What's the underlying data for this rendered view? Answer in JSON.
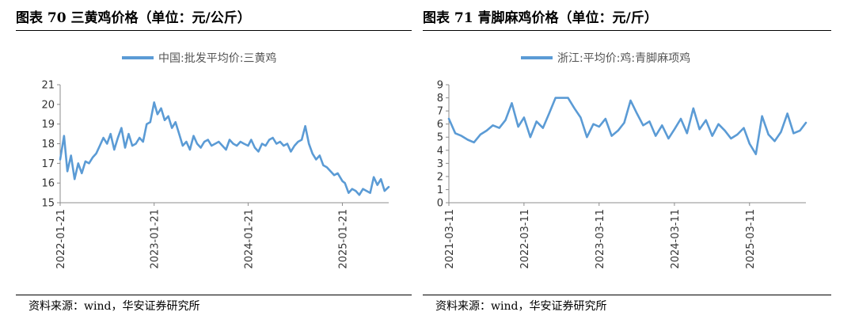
{
  "colors": {
    "series": "#5b9bd5",
    "axis": "#8c8c8c",
    "text": "#333333"
  },
  "charts": [
    {
      "title": "图表 70 三黄鸡价格（单位：元/公斤）",
      "source": "资料来源：wind，华安证券研究所"
    },
    {
      "title": "图表 71 青脚麻鸡价格（单位：元/斤）",
      "source": "资料来源：wind，华安证券研究所"
    }
  ],
  "chart_data": [
    {
      "type": "line",
      "title": "",
      "xlabel": "",
      "ylabel": "",
      "legend_position": "top",
      "grid": false,
      "ylim": [
        15,
        21
      ],
      "yticks": [
        15,
        16,
        17,
        18,
        19,
        20,
        21
      ],
      "xticks": [
        "2022-01-21",
        "2023-01-21",
        "2024-01-21",
        "2025-01-21"
      ],
      "xlim": [
        "2022-01-21",
        "2025-07-20"
      ],
      "series": [
        {
          "name": "中国:批发平均价:三黄鸡",
          "x": [
            "2022-01-21",
            "2022-02-05",
            "2022-02-18",
            "2022-03-04",
            "2022-03-18",
            "2022-04-01",
            "2022-04-15",
            "2022-04-29",
            "2022-05-13",
            "2022-05-27",
            "2022-06-10",
            "2022-06-24",
            "2022-07-08",
            "2022-07-22",
            "2022-08-05",
            "2022-08-19",
            "2022-09-02",
            "2022-09-16",
            "2022-09-30",
            "2022-10-14",
            "2022-10-28",
            "2022-11-11",
            "2022-11-25",
            "2022-12-09",
            "2022-12-23",
            "2023-01-06",
            "2023-01-21",
            "2023-02-03",
            "2023-02-17",
            "2023-03-03",
            "2023-03-17",
            "2023-03-31",
            "2023-04-14",
            "2023-04-28",
            "2023-05-12",
            "2023-05-26",
            "2023-06-09",
            "2023-06-23",
            "2023-07-07",
            "2023-07-21",
            "2023-08-04",
            "2023-08-18",
            "2023-09-01",
            "2023-09-15",
            "2023-09-29",
            "2023-10-13",
            "2023-10-27",
            "2023-11-10",
            "2023-11-24",
            "2023-12-08",
            "2023-12-22",
            "2024-01-05",
            "2024-01-21",
            "2024-02-02",
            "2024-02-16",
            "2024-03-01",
            "2024-03-15",
            "2024-03-29",
            "2024-04-12",
            "2024-04-26",
            "2024-05-10",
            "2024-05-24",
            "2024-06-07",
            "2024-06-21",
            "2024-07-05",
            "2024-07-19",
            "2024-08-02",
            "2024-08-16",
            "2024-08-30",
            "2024-09-13",
            "2024-09-27",
            "2024-10-11",
            "2024-10-25",
            "2024-11-08",
            "2024-11-22",
            "2024-12-06",
            "2024-12-20",
            "2025-01-03",
            "2025-01-21",
            "2025-01-31",
            "2025-02-14",
            "2025-02-28",
            "2025-03-14",
            "2025-03-28",
            "2025-04-11",
            "2025-04-25",
            "2025-05-09",
            "2025-05-23",
            "2025-06-06",
            "2025-06-20",
            "2025-07-04",
            "2025-07-20"
          ],
          "values": [
            17.2,
            18.4,
            16.6,
            17.4,
            16.2,
            17.0,
            16.5,
            17.1,
            17.0,
            17.3,
            17.5,
            17.9,
            18.3,
            18.0,
            18.5,
            17.7,
            18.3,
            18.8,
            17.8,
            18.5,
            17.9,
            18.0,
            18.3,
            18.1,
            19.0,
            19.1,
            20.1,
            19.5,
            19.8,
            19.2,
            19.4,
            18.8,
            19.1,
            18.5,
            17.9,
            18.1,
            17.7,
            18.4,
            18.0,
            17.8,
            18.1,
            18.2,
            17.9,
            18.0,
            18.1,
            17.9,
            17.7,
            18.2,
            18.0,
            17.9,
            18.1,
            18.0,
            17.9,
            18.2,
            17.8,
            17.6,
            18.0,
            17.9,
            18.2,
            18.3,
            18.0,
            18.1,
            17.9,
            18.0,
            17.6,
            17.9,
            18.1,
            18.2,
            18.9,
            18.0,
            17.5,
            17.2,
            17.4,
            16.9,
            16.8,
            16.6,
            16.4,
            16.5,
            16.1,
            16.0,
            15.5,
            15.7,
            15.6,
            15.4,
            15.7,
            15.6,
            15.5,
            16.3,
            15.9,
            16.2,
            15.6,
            15.8
          ]
        }
      ]
    },
    {
      "type": "line",
      "title": "",
      "xlabel": "",
      "ylabel": "",
      "legend_position": "top",
      "grid": false,
      "ylim": [
        0,
        9
      ],
      "yticks": [
        0,
        1,
        2,
        3,
        4,
        5,
        6,
        7,
        8,
        9
      ],
      "xticks": [
        "2021-03-11",
        "2022-03-11",
        "2023-03-11",
        "2024-03-11",
        "2025-03-11"
      ],
      "xlim": [
        "2021-03-11",
        "2025-12-10"
      ],
      "series": [
        {
          "name": "浙江:平均价:鸡:青脚麻项鸡",
          "x": [
            "2021-03-11",
            "2021-04-11",
            "2021-05-11",
            "2021-06-11",
            "2021-07-11",
            "2021-08-11",
            "2021-09-11",
            "2021-10-11",
            "2021-11-11",
            "2021-12-11",
            "2022-01-11",
            "2022-02-11",
            "2022-03-11",
            "2022-04-11",
            "2022-05-11",
            "2022-06-11",
            "2022-07-11",
            "2022-08-11",
            "2022-09-11",
            "2022-10-11",
            "2022-11-11",
            "2022-12-11",
            "2023-01-11",
            "2023-02-11",
            "2023-03-11",
            "2023-04-11",
            "2023-05-11",
            "2023-06-11",
            "2023-07-11",
            "2023-08-11",
            "2023-09-11",
            "2023-10-11",
            "2023-11-11",
            "2023-12-11",
            "2024-01-11",
            "2024-02-11",
            "2024-03-11",
            "2024-04-11",
            "2024-05-11",
            "2024-06-11",
            "2024-07-11",
            "2024-08-11",
            "2024-09-11",
            "2024-10-11",
            "2024-11-11",
            "2024-12-11",
            "2025-01-11",
            "2025-02-11",
            "2025-03-11",
            "2025-04-11",
            "2025-05-11",
            "2025-06-11",
            "2025-07-11",
            "2025-08-11",
            "2025-09-11",
            "2025-10-11",
            "2025-11-11",
            "2025-12-10"
          ],
          "values": [
            6.4,
            5.3,
            5.1,
            4.8,
            4.6,
            5.2,
            5.5,
            5.9,
            5.7,
            6.3,
            7.6,
            5.8,
            6.5,
            5.0,
            6.2,
            5.7,
            6.8,
            8.0,
            8.0,
            8.0,
            7.2,
            6.5,
            5.0,
            6.0,
            5.8,
            6.4,
            5.1,
            5.5,
            6.1,
            7.8,
            6.8,
            5.9,
            6.2,
            5.1,
            5.9,
            4.9,
            5.6,
            6.4,
            5.3,
            7.2,
            5.6,
            6.3,
            5.1,
            6.0,
            5.5,
            4.9,
            5.2,
            5.7,
            4.5,
            3.7,
            6.6,
            5.2,
            4.7,
            5.4,
            6.8,
            5.3,
            5.5,
            6.1
          ]
        }
      ]
    }
  ]
}
